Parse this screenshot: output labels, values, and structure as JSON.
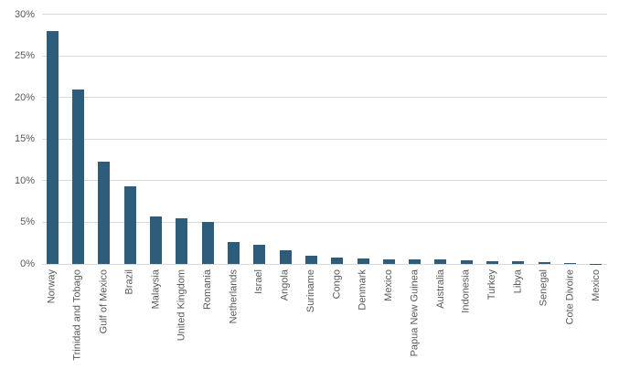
{
  "chart_data": {
    "type": "bar",
    "title": "",
    "categories": [
      "Norway",
      "Trinidad and Tobago",
      "Gulf of Mexico",
      "Brazil",
      "Malaysia",
      "United Kingdom",
      "Romania",
      "Netherlands",
      "Israel",
      "Angola",
      "Suriname",
      "Congo",
      "Denmark",
      "Mexico",
      "Papua New Guinea",
      "Australia",
      "Indonesia",
      "Turkey",
      "Libya",
      "Senegal",
      "Cote Divoire",
      "Mexico"
    ],
    "values": [
      28,
      21,
      12.3,
      9.3,
      5.7,
      5.5,
      5,
      2.6,
      2.3,
      1.7,
      1,
      0.75,
      0.65,
      0.6,
      0.55,
      0.5,
      0.45,
      0.35,
      0.3,
      0.2,
      0.1,
      0.05
    ],
    "unit": "%",
    "ylim": [
      0,
      30
    ],
    "yticks": [
      {
        "value": 0,
        "label": "0%"
      },
      {
        "value": 5,
        "label": "5%"
      },
      {
        "value": 10,
        "label": "10%"
      },
      {
        "value": 15,
        "label": "15%"
      },
      {
        "value": 20,
        "label": "20%"
      },
      {
        "value": 25,
        "label": "25%"
      },
      {
        "value": 30,
        "label": "30%"
      }
    ],
    "grid": true,
    "legend": false,
    "colors": {
      "bar": "#2E5D7C",
      "gridline": "#D9D9D9",
      "axis_labels": "#595959",
      "background": "#FFFFFF"
    }
  }
}
